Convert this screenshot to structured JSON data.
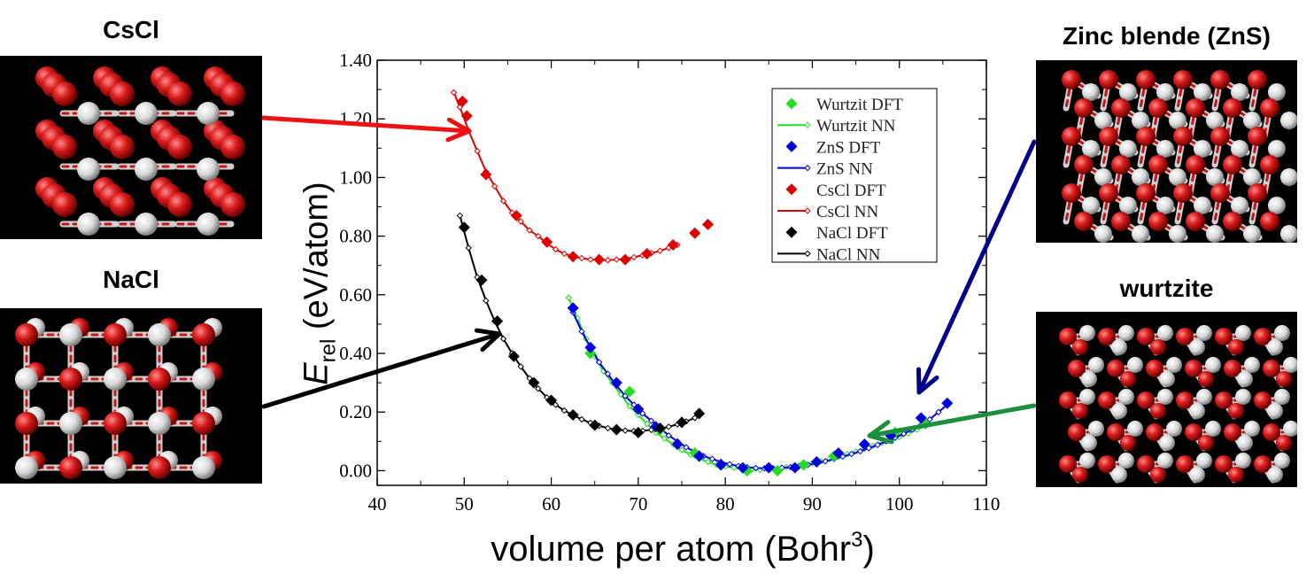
{
  "panels": {
    "cscl": {
      "label": "CsCl",
      "pattern": "cscl"
    },
    "nacl": {
      "label": "NaCl",
      "pattern": "nacl"
    },
    "zns": {
      "label": "Zinc blende (ZnS)",
      "pattern": "zns"
    },
    "wurtzite": {
      "label": "wurtzite",
      "pattern": "wurtzite"
    }
  },
  "axis": {
    "ylabel_symbol": "E",
    "ylabel_sub": "rel",
    "ylabel_unit": "(eV/atom)",
    "xlabel_main": "volume per atom (Bohr",
    "xlabel_sup": "3",
    "xlabel_end": ")"
  },
  "colors": {
    "wurtzite": "#22dd22",
    "zns": "#0000dd",
    "cscl": "#dd0000",
    "nacl": "#000000",
    "arrow_red": "#ee1111",
    "arrow_black": "#000000",
    "arrow_navy": "#00008b",
    "arrow_green": "#1a8f3c",
    "atom_red": "#d81a1a",
    "atom_white": "#e6e6e6"
  },
  "chart_data": {
    "type": "line",
    "xlim": [
      40,
      110
    ],
    "ylim": [
      -0.05,
      1.4
    ],
    "xticks": [
      "40",
      "50",
      "60",
      "70",
      "80",
      "90",
      "100",
      "110"
    ],
    "yticks": [
      "0.00",
      "0.20",
      "0.40",
      "0.60",
      "0.80",
      "1.00",
      "1.20",
      "1.40"
    ],
    "grid": false,
    "legend_position": "top-right",
    "legend": [
      "Wurtzit DFT",
      "Wurtzit NN",
      "ZnS DFT",
      "ZnS NN",
      "CsCl DFT",
      "CsCl NN",
      "NaCl DFT",
      "NaCl NN"
    ],
    "series": [
      {
        "name": "Wurtzit DFT",
        "kind": "dft",
        "color": "#22dd22",
        "x": [
          64.5,
          69.0,
          72.5,
          76.5,
          79.5,
          82.5,
          86.0,
          89.0,
          92.5,
          96.0,
          99.5,
          103.0
        ],
        "y": [
          0.4,
          0.27,
          0.14,
          0.06,
          0.02,
          0.0,
          0.0,
          0.02,
          0.05,
          0.09,
          0.13,
          0.16
        ]
      },
      {
        "name": "Wurtzit NN",
        "kind": "nn",
        "color": "#22dd22",
        "x": [
          62,
          63,
          64,
          65,
          66,
          67,
          68,
          69,
          70,
          71,
          72,
          73,
          74,
          75,
          76,
          77,
          78,
          79,
          80,
          81,
          82,
          83,
          84,
          85,
          86,
          87,
          88,
          89,
          90,
          91,
          92,
          93,
          94,
          95,
          96,
          97,
          98,
          99,
          100,
          101,
          102,
          103
        ],
        "y": [
          0.59,
          0.52,
          0.45,
          0.39,
          0.34,
          0.3,
          0.26,
          0.22,
          0.19,
          0.16,
          0.13,
          0.11,
          0.09,
          0.07,
          0.055,
          0.04,
          0.03,
          0.02,
          0.015,
          0.01,
          0.005,
          0.003,
          0.003,
          0.005,
          0.008,
          0.012,
          0.016,
          0.02,
          0.026,
          0.032,
          0.04,
          0.048,
          0.056,
          0.065,
          0.075,
          0.085,
          0.095,
          0.105,
          0.115,
          0.127,
          0.14,
          0.155
        ]
      },
      {
        "name": "ZnS DFT",
        "kind": "dft",
        "color": "#0000dd",
        "x": [
          62.5,
          64.5,
          67.5,
          70.0,
          72.0,
          74.5,
          77.0,
          79.5,
          82.0,
          85.0,
          88.0,
          90.5,
          93.0,
          96.0,
          99.0,
          102.5,
          105.5
        ],
        "y": [
          0.555,
          0.42,
          0.3,
          0.21,
          0.15,
          0.09,
          0.05,
          0.02,
          0.01,
          0.01,
          0.01,
          0.03,
          0.06,
          0.09,
          0.12,
          0.18,
          0.23
        ]
      },
      {
        "name": "ZnS NN",
        "kind": "nn",
        "color": "#0000dd",
        "x": [
          62.5,
          63.5,
          64.5,
          65.5,
          66.5,
          67.5,
          68.5,
          69.5,
          70.5,
          71.5,
          72.5,
          73.5,
          74.5,
          75.5,
          76.5,
          77.5,
          78.5,
          79.5,
          80.5,
          81.5,
          82.5,
          83.5,
          84.5,
          85.5,
          86.5,
          87.5,
          88.5,
          89.5,
          90.5,
          91.5,
          92.5,
          93.5,
          94.5,
          95.5,
          96.5,
          97.5,
          98.5,
          99.5,
          100.5,
          101.5,
          102.5,
          103.5,
          104.5,
          105.5
        ],
        "y": [
          0.54,
          0.475,
          0.42,
          0.37,
          0.33,
          0.29,
          0.255,
          0.225,
          0.195,
          0.17,
          0.145,
          0.12,
          0.1,
          0.08,
          0.065,
          0.05,
          0.04,
          0.03,
          0.022,
          0.016,
          0.012,
          0.009,
          0.008,
          0.008,
          0.01,
          0.012,
          0.016,
          0.02,
          0.026,
          0.032,
          0.04,
          0.048,
          0.057,
          0.066,
          0.077,
          0.088,
          0.1,
          0.112,
          0.126,
          0.14,
          0.156,
          0.175,
          0.2,
          0.225
        ]
      },
      {
        "name": "CsCl DFT",
        "kind": "dft",
        "color": "#dd0000",
        "x": [
          49.8,
          50.3,
          52.5,
          56.0,
          59.5,
          62.5,
          65.5,
          68.5,
          71.0,
          74.0,
          76.5,
          78.0
        ],
        "y": [
          1.26,
          1.21,
          1.01,
          0.87,
          0.78,
          0.73,
          0.72,
          0.72,
          0.74,
          0.77,
          0.81,
          0.84
        ]
      },
      {
        "name": "CsCl NN",
        "kind": "nn",
        "color": "#dd0000",
        "x": [
          48.8,
          49.5,
          50.5,
          51.5,
          52.5,
          53.5,
          54.5,
          55.5,
          56.5,
          57.5,
          58.5,
          59.5,
          60.5,
          61.5,
          62.5,
          63.5,
          64.5,
          65.5,
          66.5,
          67.5,
          68.5,
          69.5,
          70.5,
          71.5,
          72.5,
          73.5,
          74.5
        ],
        "y": [
          1.29,
          1.24,
          1.16,
          1.09,
          1.02,
          0.97,
          0.92,
          0.88,
          0.85,
          0.82,
          0.8,
          0.775,
          0.755,
          0.74,
          0.73,
          0.725,
          0.72,
          0.718,
          0.718,
          0.72,
          0.723,
          0.728,
          0.735,
          0.742,
          0.75,
          0.76,
          0.77
        ]
      },
      {
        "name": "NaCl DFT",
        "kind": "dft",
        "color": "#000000",
        "x": [
          50.0,
          52.0,
          53.8,
          55.7,
          58.0,
          60.0,
          62.5,
          65.0,
          67.5,
          70.0,
          72.5,
          75.0,
          77.0
        ],
        "y": [
          0.83,
          0.65,
          0.51,
          0.39,
          0.3,
          0.24,
          0.19,
          0.155,
          0.14,
          0.13,
          0.145,
          0.165,
          0.195
        ]
      },
      {
        "name": "NaCl NN",
        "kind": "nn",
        "color": "#000000",
        "x": [
          49.5,
          50.5,
          51.5,
          52.5,
          53.5,
          54.5,
          55.5,
          56.5,
          57.5,
          58.5,
          59.5,
          60.5,
          61.5,
          62.5,
          63.5,
          64.5,
          65.5,
          66.5,
          67.5,
          68.5,
          69.5,
          70.5,
          71.5,
          72.5,
          73.5,
          74.5,
          75.5,
          76.5
        ],
        "y": [
          0.87,
          0.76,
          0.66,
          0.58,
          0.51,
          0.45,
          0.4,
          0.355,
          0.315,
          0.28,
          0.25,
          0.225,
          0.205,
          0.19,
          0.175,
          0.163,
          0.153,
          0.145,
          0.14,
          0.137,
          0.135,
          0.136,
          0.139,
          0.143,
          0.15,
          0.158,
          0.168,
          0.18
        ]
      }
    ]
  }
}
